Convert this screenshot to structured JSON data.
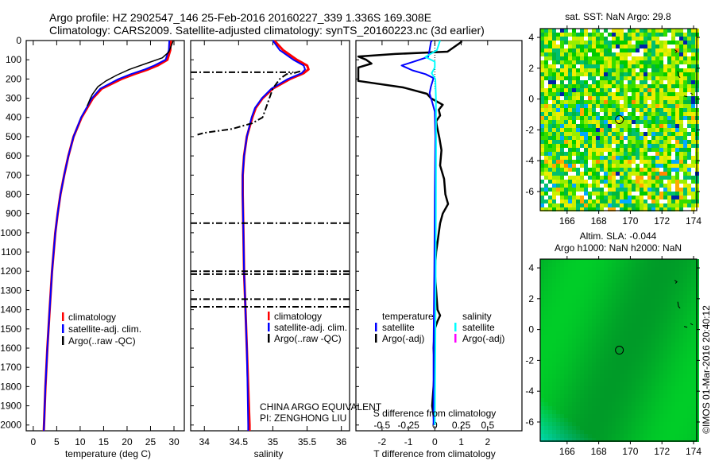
{
  "title": {
    "line1": "Argo profile: HZ 2902547_146 25-Feb-2016 20160227_339 1.336S 169.308E",
    "line2": "Climatology: CARS2009. Satellite-adjusted climatology: synTS_20160223.nc (3d earlier)"
  },
  "credit": "©IMOS 01-Mar-2016 20:40:12",
  "institution": {
    "line1": "CHINA ARGO EQUIVALENT",
    "line2": "PI: ZENGHONG LIU"
  },
  "colors": {
    "climatology": "#ff0000",
    "satellite": "#0000ff",
    "argo": "#000000",
    "sal_satellite": "#00ffff",
    "sal_argo": "#ff00ff"
  },
  "chart_data": [
    {
      "type": "line",
      "title": "",
      "xlabel": "temperature (deg C)",
      "ylabel": "",
      "xlim": [
        -1.5,
        32.2
      ],
      "ylim": [
        2030,
        0
      ],
      "xticks": [
        0,
        5,
        10,
        15,
        20,
        25,
        30
      ],
      "yticks": [
        0,
        100,
        200,
        300,
        400,
        500,
        600,
        700,
        800,
        900,
        1000,
        1100,
        1200,
        1300,
        1400,
        1500,
        1600,
        1700,
        1800,
        1900,
        2000
      ],
      "legend": {
        "placement": "lower-center",
        "entries": [
          "climatology",
          "satellite-adj. clim.",
          "Argo(..raw -QC)"
        ]
      },
      "series": [
        {
          "name": "climatology",
          "depth": [
            0,
            50,
            100,
            130,
            150,
            175,
            200,
            250,
            300,
            400,
            500,
            600,
            700,
            800,
            900,
            1000,
            1200,
            1400,
            1600,
            1800,
            2000,
            2030
          ],
          "values": [
            29.3,
            29.2,
            28.6,
            26.5,
            24.5,
            21.5,
            18.8,
            14.6,
            12.7,
            10.3,
            8.6,
            7.5,
            6.6,
            5.8,
            5.2,
            4.7,
            4.0,
            3.5,
            3.0,
            2.6,
            2.3,
            2.25
          ]
        },
        {
          "name": "satellite-adj. clim.",
          "depth": [
            0,
            50,
            100,
            130,
            150,
            175,
            200,
            250,
            300,
            400,
            500,
            600,
            700,
            800,
            900,
            1000,
            1200,
            1400,
            1600,
            1800,
            2000,
            2030
          ],
          "values": [
            29.0,
            28.9,
            28.2,
            25.8,
            23.8,
            20.8,
            18.2,
            14.3,
            12.5,
            10.2,
            8.6,
            7.5,
            6.6,
            5.8,
            5.2,
            4.7,
            4.0,
            3.5,
            3.0,
            2.6,
            2.3,
            2.25
          ]
        },
        {
          "name": "Argo(..raw -QC)",
          "depth": [
            0,
            10,
            60,
            90,
            120,
            150,
            180,
            210,
            240,
            280,
            300,
            340
          ],
          "values": [
            29.8,
            29.7,
            28.9,
            27.5,
            24.0,
            20.5,
            17.8,
            15.5,
            13.8,
            12.6,
            12.2,
            11.5
          ]
        }
      ]
    },
    {
      "type": "line",
      "xlabel": "salinity",
      "xlim": [
        33.8,
        36.12
      ],
      "ylim": [
        2030,
        0
      ],
      "xticks": [
        34,
        34.5,
        35,
        35.5,
        36
      ],
      "legend": {
        "placement": "lower-right",
        "entries": [
          "climatology",
          "satellite-adj. clim.",
          "Argo(..raw -QC)"
        ]
      },
      "series": [
        {
          "name": "climatology",
          "depth": [
            0,
            50,
            100,
            130,
            150,
            170,
            200,
            250,
            300,
            350,
            400,
            500,
            600,
            700,
            800,
            1000,
            1200,
            1400,
            1600,
            1800,
            2000,
            2030
          ],
          "values": [
            35.02,
            35.15,
            35.35,
            35.5,
            35.52,
            35.45,
            35.25,
            35.0,
            34.85,
            34.75,
            34.7,
            34.62,
            34.58,
            34.56,
            34.56,
            34.57,
            34.58,
            34.6,
            34.62,
            34.64,
            34.66,
            34.66
          ]
        },
        {
          "name": "satellite-adj. clim.",
          "depth": [
            0,
            50,
            100,
            130,
            150,
            170,
            200,
            250,
            300,
            350,
            400,
            500,
            600,
            700,
            800,
            1000,
            1200,
            1400,
            1600,
            1800,
            2000,
            2030
          ],
          "values": [
            35.0,
            35.1,
            35.3,
            35.45,
            35.47,
            35.42,
            35.22,
            34.98,
            34.84,
            34.74,
            34.69,
            34.62,
            34.58,
            34.56,
            34.56,
            34.57,
            34.58,
            34.6,
            34.62,
            34.63,
            34.64,
            34.64
          ]
        },
        {
          "name": "Argo(..raw -QC)",
          "depth": [
            160,
            170,
            175,
            200,
            250,
            300,
            350,
            400,
            430,
            460,
            480,
            490
          ],
          "values": [
            35.4,
            35.3,
            35.2,
            35.1,
            35.0,
            34.95,
            34.9,
            34.85,
            34.7,
            34.4,
            34.0,
            33.9
          ]
        },
        {
          "name": "Argo(..raw -QC) spikes",
          "depth": [
            165,
            950,
            1200,
            1215,
            1345,
            1385
          ],
          "values": [
            33.8,
            33.8,
            33.8,
            33.8,
            33.8,
            33.8
          ],
          "to": [
            35.3,
            36.12,
            36.12,
            36.12,
            36.12,
            36.12
          ]
        }
      ]
    },
    {
      "type": "line",
      "xlabel": "T difference from climatology",
      "xlabel2": "S difference from climatology",
      "xlim": [
        -2.99,
        3.3
      ],
      "ylim": [
        2030,
        0
      ],
      "xticks": [
        -2,
        -1,
        0,
        1,
        2
      ],
      "xticks2": [
        -0.5,
        -0.25,
        0,
        0.25,
        0.5
      ],
      "xticks2_labels": [
        "-0.5",
        "-0.25",
        "0",
        "0.25",
        "0.5"
      ],
      "legend": {
        "placement": "lower-center",
        "headers": [
          "temperature",
          "salinity"
        ],
        "entries": [
          "satellite",
          "Argo(-adj)",
          "satellite",
          "Argo(-adj)"
        ]
      },
      "series": [
        {
          "name": "T Argo(-adj)",
          "units": "T",
          "depth": [
            0,
            8,
            58,
            70,
            83,
            100,
            120,
            140,
            170,
            210,
            244,
            277,
            300,
            334,
            360,
            390,
            420,
            440,
            505,
            570,
            650,
            720,
            800,
            850,
            900,
            950,
            1000,
            1050,
            1100,
            1200,
            1300,
            1400,
            1430,
            1460,
            1500,
            1600,
            1700,
            1800,
            1900,
            2000
          ],
          "values": [
            1.0,
            1.0,
            0.48,
            -1.5,
            -2.9,
            -2.6,
            -2.4,
            -2.9,
            -2.9,
            -2.9,
            -1.2,
            -0.3,
            -0.15,
            0.3,
            0.15,
            0.2,
            0.05,
            0.07,
            0.17,
            0.25,
            0.2,
            0.35,
            0.4,
            0.5,
            0.3,
            0.2,
            0.15,
            0.1,
            0.05,
            0.0,
            0.05,
            0.1,
            0.2,
            0.1,
            0.0,
            -0.05,
            0.0,
            -0.05,
            -0.1,
            0.0
          ]
        },
        {
          "name": "T satellite",
          "units": "T",
          "depth": [
            0,
            8,
            50,
            85,
            110,
            130,
            155,
            175,
            195,
            240,
            275,
            320,
            370,
            500,
            800,
            1200,
            1600,
            2000
          ],
          "values": [
            -0.1,
            -0.15,
            -0.2,
            -0.25,
            -0.8,
            -1.26,
            -0.85,
            -0.35,
            -0.05,
            -0.15,
            -0.2,
            -0.1,
            0.0,
            0.02,
            0.0,
            -0.02,
            -0.05,
            -0.05
          ]
        },
        {
          "name": "S satellite",
          "units": "S",
          "depth": [
            0,
            8,
            50,
            85,
            110,
            140,
            170,
            200,
            300,
            500,
            800,
            1200,
            1600,
            2000
          ],
          "values": [
            0.05,
            0.045,
            0.02,
            -0.09,
            0.0,
            0.0,
            -0.03,
            0.005,
            0.01,
            0.012,
            0.01,
            0.008,
            0.005,
            0.0
          ]
        }
      ]
    },
    {
      "type": "heatmap",
      "title": "sat. SST: NaN Argo: 29.8",
      "xlim": [
        164.3,
        174.2
      ],
      "ylim": [
        -7.24,
        4.57
      ],
      "xticks": [
        166,
        168,
        170,
        172,
        174
      ],
      "yticks": [
        4,
        2,
        0,
        -2,
        -4,
        -6
      ],
      "marker": {
        "lon": 169.308,
        "lat": -1.336
      }
    },
    {
      "type": "heatmap",
      "title": "Altim. SLA: -0.044",
      "subtitle": "Argo h1000: NaN h2000: NaN",
      "xlim": [
        164.3,
        174.2
      ],
      "ylim": [
        -7.24,
        4.57
      ],
      "xticks": [
        166,
        168,
        170,
        172,
        174
      ],
      "yticks": [
        4,
        2,
        0,
        -2,
        -4,
        -6
      ],
      "marker": {
        "lon": 169.308,
        "lat": -1.336
      }
    }
  ]
}
